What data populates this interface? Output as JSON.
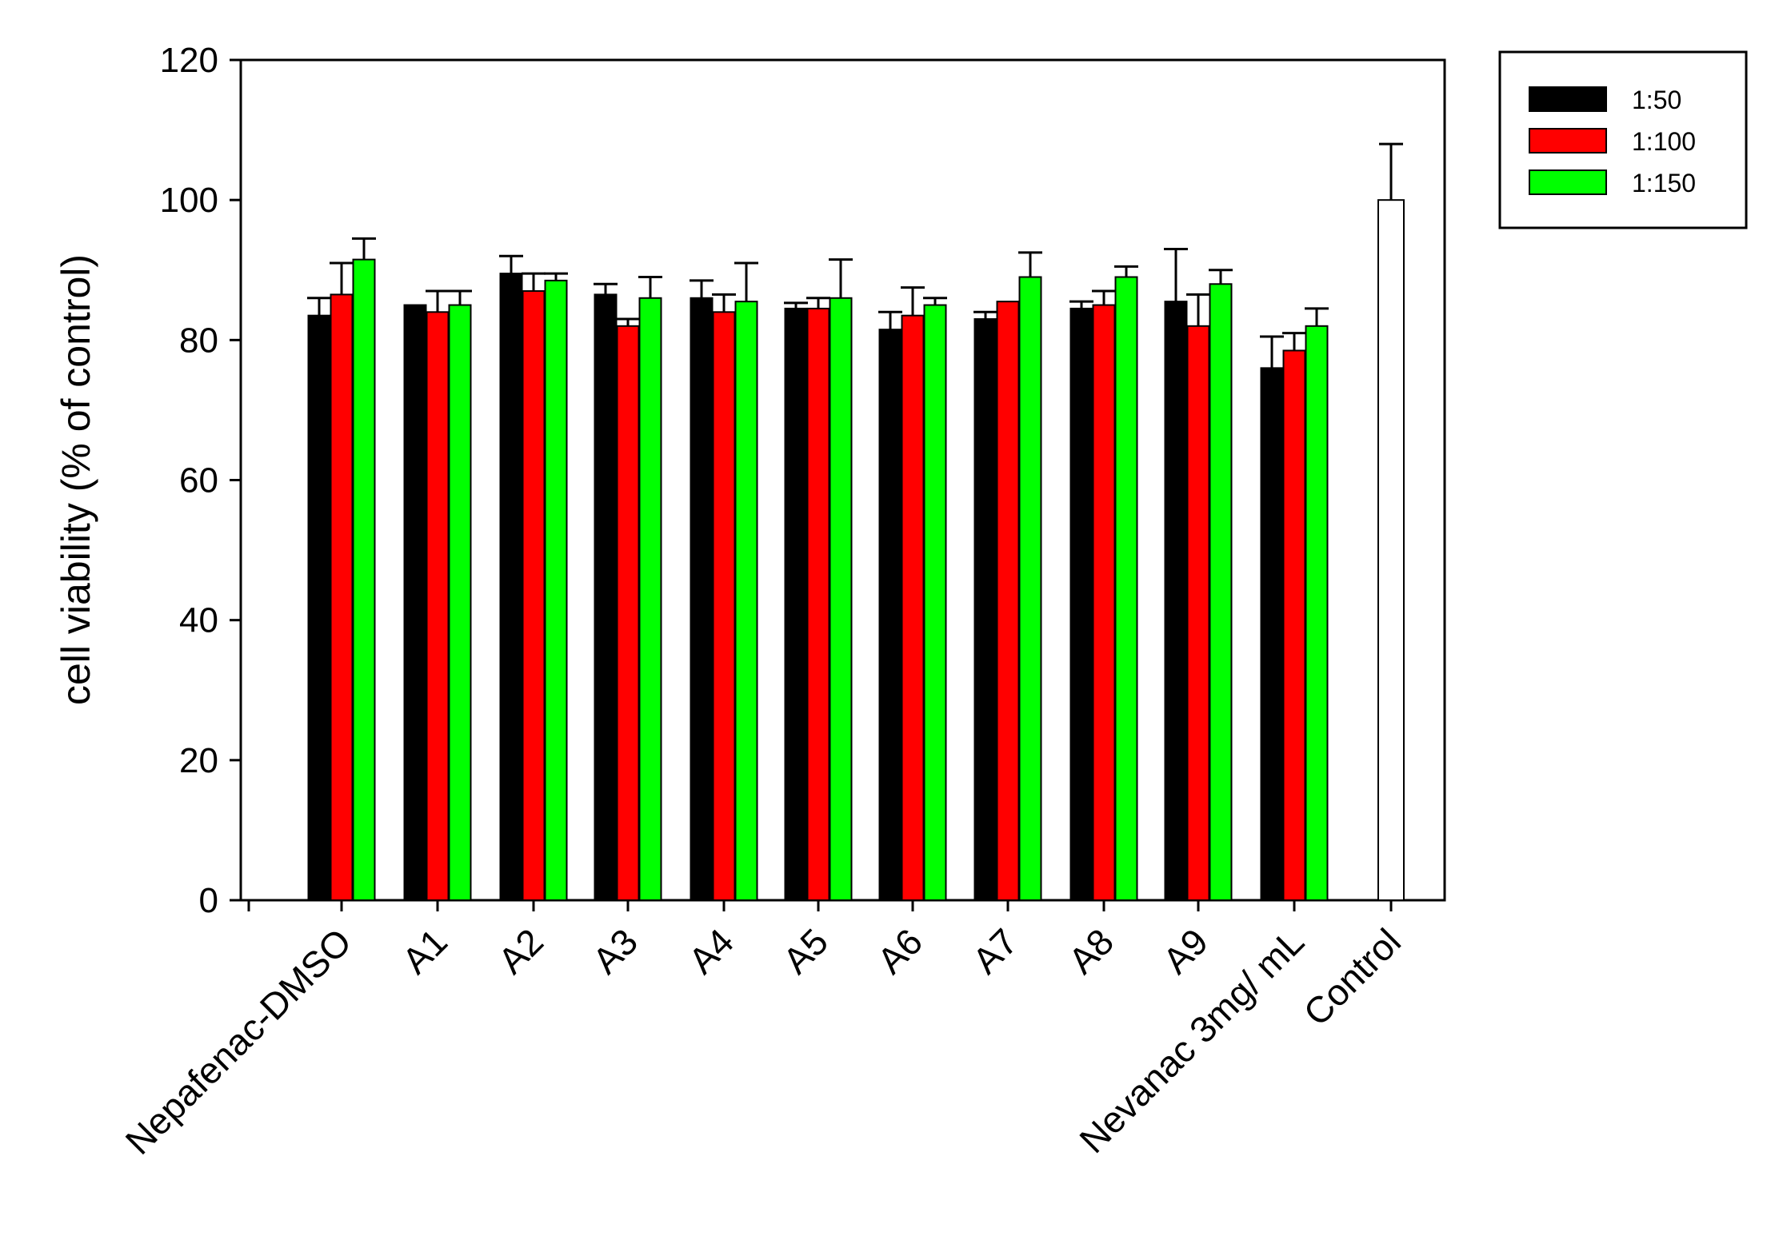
{
  "chart_data": {
    "type": "bar",
    "ylabel": "cell viability (% of control)",
    "ylim": [
      0,
      120
    ],
    "y_ticks": [
      "0",
      "20",
      "40",
      "60",
      "80",
      "100",
      "120"
    ],
    "categories": [
      "Nepafenac-DMSO",
      "A1",
      "A2",
      "A3",
      "A4",
      "A5",
      "A6",
      "A7",
      "A8",
      "A9",
      "Nevanac 3mg/ mL",
      "Control"
    ],
    "series": [
      {
        "name": "1:50",
        "color": "#000000",
        "values": [
          83.5,
          85.0,
          89.5,
          86.5,
          86.0,
          84.5,
          81.5,
          83.0,
          84.5,
          85.5,
          76.0,
          null
        ],
        "errors": [
          2.5,
          0,
          2.5,
          1.5,
          2.5,
          0.8,
          2.5,
          1.0,
          1.0,
          7.5,
          4.5,
          null
        ]
      },
      {
        "name": "1:100",
        "color": "#ff0000",
        "values": [
          86.5,
          84.0,
          87.0,
          82.0,
          84.0,
          84.5,
          83.5,
          85.5,
          85.0,
          82.0,
          78.5,
          null
        ],
        "errors": [
          4.5,
          3.0,
          2.5,
          1.0,
          2.5,
          1.5,
          4.0,
          0,
          2.0,
          4.5,
          2.5,
          null
        ]
      },
      {
        "name": "1:150",
        "color": "#00ff00",
        "values": [
          91.5,
          85.0,
          88.5,
          86.0,
          85.5,
          86.0,
          85.0,
          89.0,
          89.0,
          88.0,
          82.0,
          null
        ],
        "errors": [
          3.0,
          2.0,
          1.0,
          3.0,
          5.5,
          5.5,
          1.0,
          3.5,
          1.5,
          2.0,
          2.5,
          null
        ]
      },
      {
        "name": "",
        "color": "#ffffff",
        "values": [
          null,
          null,
          null,
          null,
          null,
          null,
          null,
          null,
          null,
          null,
          null,
          100
        ],
        "errors": [
          null,
          null,
          null,
          null,
          null,
          null,
          null,
          null,
          null,
          null,
          null,
          8
        ]
      }
    ],
    "legend": {
      "position": "top-right",
      "entries": [
        "1:50",
        "1:100",
        "1:150"
      ]
    },
    "grid": false
  }
}
